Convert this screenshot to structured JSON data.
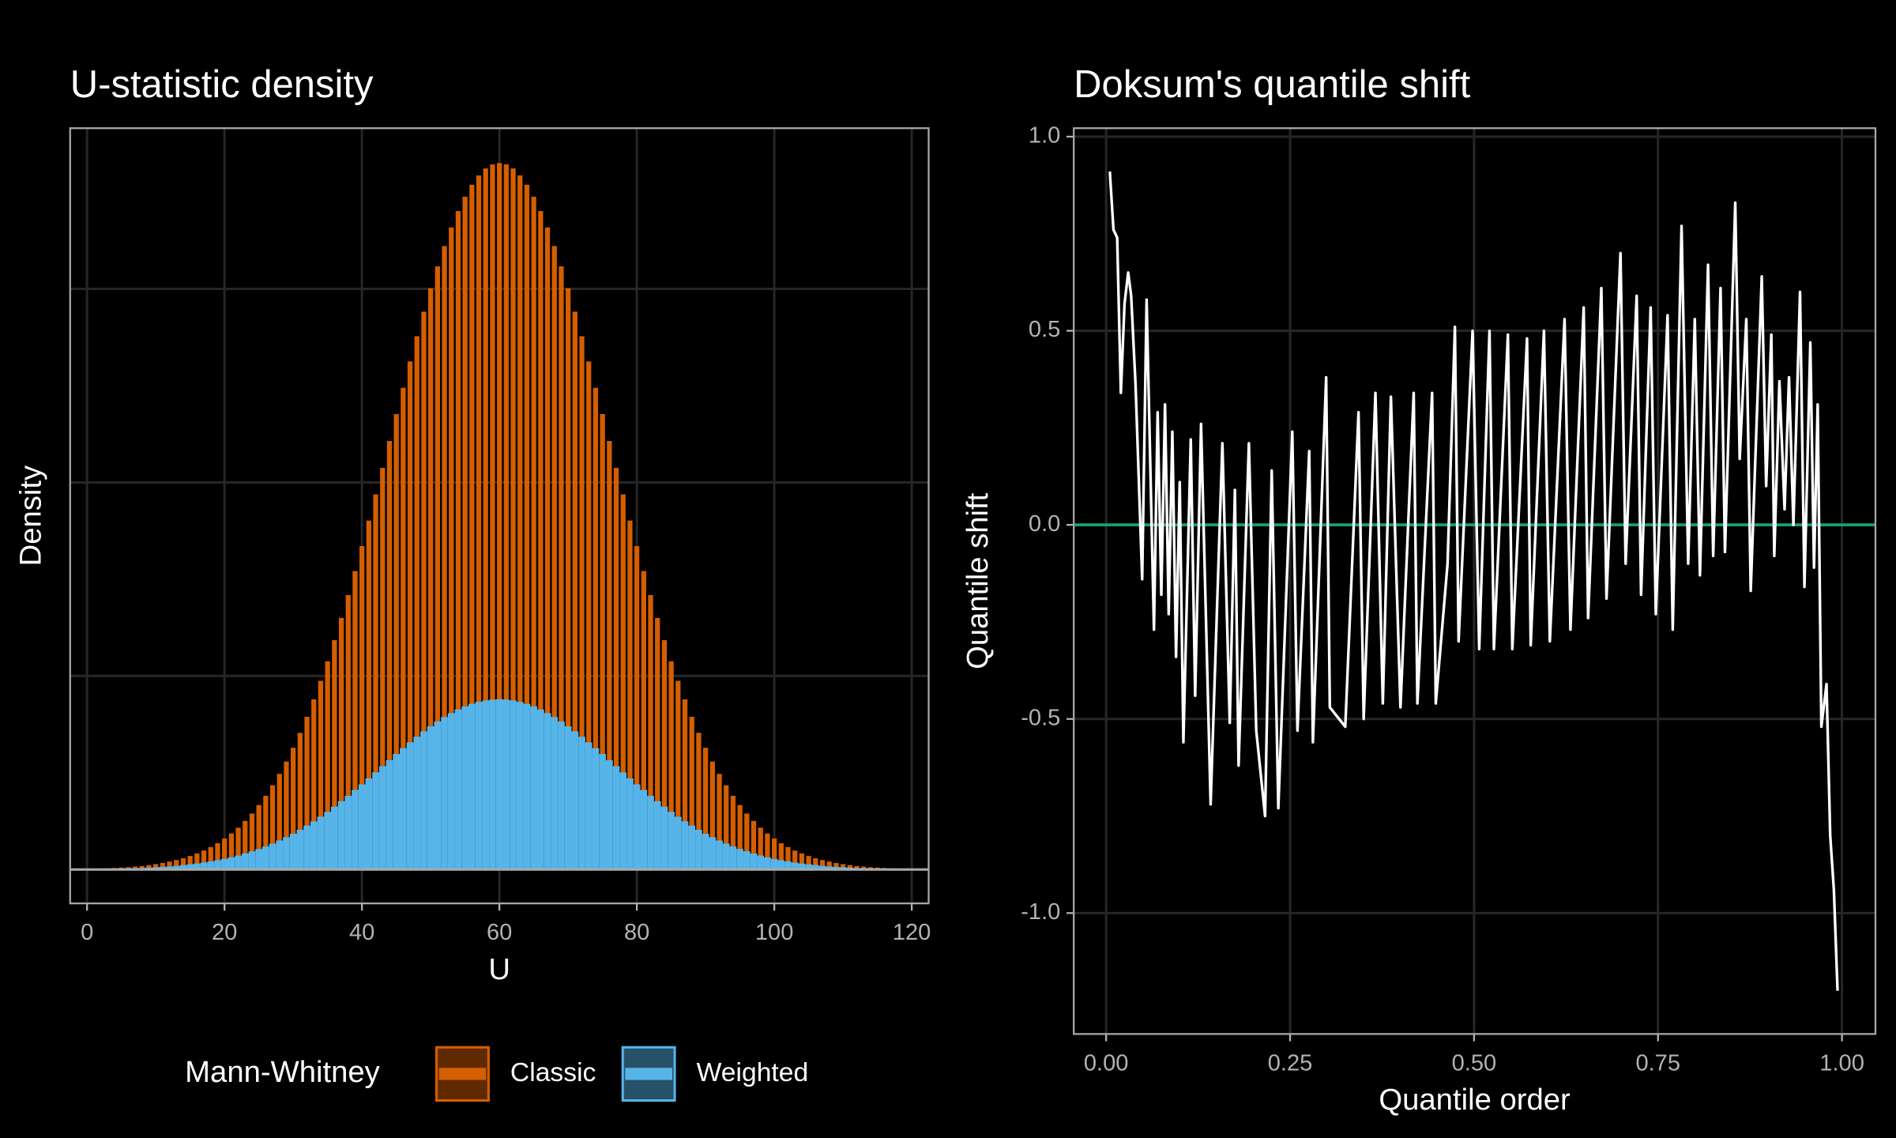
{
  "chart_data": [
    {
      "type": "bar",
      "title": "U-statistic density",
      "x_label": "U",
      "y_label": "Density",
      "legend_title": "Mann-Whitney",
      "legend_position": "bottom",
      "xlim": [
        -2.46,
        122.46
      ],
      "xticks": [
        0,
        20,
        40,
        60,
        80,
        100,
        120
      ],
      "ylim": [
        -0.00175,
        0.0383
      ],
      "yticks": [
        0,
        0.01,
        0.02,
        0.03
      ],
      "grid": true,
      "x": [
        0,
        1,
        2,
        3,
        4,
        5,
        6,
        7,
        8,
        9,
        10,
        11,
        12,
        13,
        14,
        15,
        16,
        17,
        18,
        19,
        20,
        21,
        22,
        23,
        24,
        25,
        26,
        27,
        28,
        29,
        30,
        31,
        32,
        33,
        34,
        35,
        36,
        37,
        38,
        39,
        40,
        41,
        42,
        43,
        44,
        45,
        46,
        47,
        48,
        49,
        50,
        51,
        52,
        53,
        54,
        55,
        56,
        57,
        58,
        59,
        60,
        61,
        62,
        63,
        64,
        65,
        66,
        67,
        68,
        69,
        70,
        71,
        72,
        73,
        74,
        75,
        76,
        77,
        78,
        79,
        80,
        81,
        82,
        83,
        84,
        85,
        86,
        87,
        88,
        89,
        90,
        91,
        92,
        93,
        94,
        95,
        96,
        97,
        98,
        99,
        100,
        101,
        102,
        103,
        104,
        105,
        106,
        107,
        108,
        109,
        110,
        111,
        112,
        113,
        114,
        115,
        116,
        117,
        118,
        119,
        120
      ],
      "series": [
        {
          "name": "Classic",
          "color": "#D55E00",
          "values": [
            3e-05,
            4e-05,
            5e-05,
            6e-05,
            8e-05,
            0.0001,
            0.00012,
            0.00015,
            0.00018,
            0.00023,
            0.00028,
            0.00034,
            0.00041,
            0.00049,
            0.00058,
            0.0007,
            0.00083,
            0.00098,
            0.00116,
            0.00136,
            0.0016,
            0.00186,
            0.00216,
            0.00251,
            0.00289,
            0.00333,
            0.00381,
            0.00435,
            0.00494,
            0.00558,
            0.00629,
            0.00706,
            0.00789,
            0.00879,
            0.00975,
            0.01076,
            0.01185,
            0.013,
            0.01418,
            0.01542,
            0.01671,
            0.01803,
            0.01938,
            0.02075,
            0.02214,
            0.02353,
            0.02489,
            0.02625,
            0.02755,
            0.02882,
            0.03003,
            0.03116,
            0.03221,
            0.03317,
            0.03402,
            0.03476,
            0.03538,
            0.03586,
            0.03622,
            0.03643,
            0.0365,
            0.03643,
            0.03622,
            0.03586,
            0.03538,
            0.03476,
            0.03402,
            0.03317,
            0.03221,
            0.03116,
            0.03003,
            0.02882,
            0.02755,
            0.02625,
            0.02489,
            0.02353,
            0.02214,
            0.02075,
            0.01938,
            0.01803,
            0.01671,
            0.01542,
            0.01418,
            0.013,
            0.01185,
            0.01076,
            0.00975,
            0.00879,
            0.00789,
            0.00706,
            0.00629,
            0.00558,
            0.00494,
            0.00435,
            0.00381,
            0.00333,
            0.00289,
            0.00251,
            0.00216,
            0.00186,
            0.0016,
            0.00136,
            0.00116,
            0.00098,
            0.00083,
            0.0007,
            0.00058,
            0.00049,
            0.00041,
            0.00034,
            0.00028,
            0.00023,
            0.00018,
            0.00015,
            0.00012,
            0.0001,
            8e-05,
            6e-05,
            5e-05,
            4e-05,
            3e-05
          ]
        },
        {
          "name": "Weighted",
          "color": "#56B4E9",
          "values": [
            2e-05,
            2e-05,
            3e-05,
            3e-05,
            4e-05,
            5e-05,
            6e-05,
            7e-05,
            8e-05,
            0.0001,
            0.00012,
            0.00014,
            0.00016,
            0.00019,
            0.00023,
            0.00027,
            0.00031,
            0.00036,
            0.00042,
            0.00048,
            0.00055,
            0.00063,
            0.00072,
            0.00083,
            0.00094,
            0.00106,
            0.00119,
            0.00134,
            0.0015,
            0.00167,
            0.00185,
            0.00205,
            0.00227,
            0.00249,
            0.00273,
            0.00298,
            0.00325,
            0.00353,
            0.00381,
            0.00411,
            0.0044,
            0.00471,
            0.00502,
            0.00534,
            0.00565,
            0.00597,
            0.00627,
            0.00657,
            0.00686,
            0.00714,
            0.0074,
            0.00765,
            0.00788,
            0.00808,
            0.00827,
            0.00843,
            0.00856,
            0.00866,
            0.00874,
            0.00878,
            0.0088,
            0.00878,
            0.00874,
            0.00866,
            0.00856,
            0.00843,
            0.00827,
            0.00808,
            0.00788,
            0.00765,
            0.0074,
            0.00714,
            0.00686,
            0.00657,
            0.00627,
            0.00597,
            0.00565,
            0.00534,
            0.00502,
            0.00471,
            0.0044,
            0.00411,
            0.00381,
            0.00353,
            0.00325,
            0.00298,
            0.00273,
            0.00249,
            0.00227,
            0.00205,
            0.00185,
            0.00167,
            0.0015,
            0.00134,
            0.00119,
            0.00106,
            0.00094,
            0.00083,
            0.00072,
            0.00063,
            0.00055,
            0.00048,
            0.00042,
            0.00036,
            0.00031,
            0.00027,
            0.00023,
            0.00019,
            0.00016,
            0.00014,
            0.00012,
            0.0001,
            8e-05,
            7e-05,
            6e-05,
            5e-05,
            4e-05,
            3e-05,
            3e-05,
            2e-05,
            2e-05
          ]
        }
      ]
    },
    {
      "type": "line",
      "title": "Doksum's quantile shift",
      "x_label": "Quantile order",
      "y_label": "Quantile shift",
      "xlim": [
        -0.044,
        1.0455
      ],
      "xticks": [
        {
          "value": 0,
          "label": "0.00"
        },
        {
          "value": 0.25,
          "label": "0.25"
        },
        {
          "value": 0.5,
          "label": "0.50"
        },
        {
          "value": 0.75,
          "label": "0.75"
        },
        {
          "value": 1,
          "label": "1.00"
        }
      ],
      "ylim": [
        -1.3115,
        1.0218
      ],
      "yticks": [
        {
          "value": -1,
          "label": "-1.0"
        },
        {
          "value": -0.5,
          "label": "-0.5"
        },
        {
          "value": 0,
          "label": "0.0"
        },
        {
          "value": 0.5,
          "label": "0.5"
        },
        {
          "value": 1,
          "label": "1.0"
        }
      ],
      "grid": true,
      "color": "#ffffff",
      "hline": 0,
      "hline_color": "#1b9e77",
      "x": [
        0.005,
        0.01,
        0.015,
        0.02,
        0.025,
        0.03,
        0.034,
        0.04,
        0.049,
        0.055,
        0.065,
        0.07,
        0.075,
        0.08,
        0.085,
        0.09,
        0.095,
        0.1,
        0.105,
        0.115,
        0.121,
        0.129,
        0.142,
        0.158,
        0.168,
        0.175,
        0.18,
        0.194,
        0.204,
        0.216,
        0.225,
        0.234,
        0.253,
        0.26,
        0.276,
        0.281,
        0.299,
        0.304,
        0.325,
        0.343,
        0.35,
        0.366,
        0.376,
        0.387,
        0.4,
        0.418,
        0.423,
        0.443,
        0.448,
        0.464,
        0.474,
        0.479,
        0.498,
        0.507,
        0.521,
        0.527,
        0.546,
        0.552,
        0.572,
        0.577,
        0.595,
        0.603,
        0.623,
        0.631,
        0.649,
        0.655,
        0.673,
        0.68,
        0.699,
        0.706,
        0.721,
        0.727,
        0.74,
        0.747,
        0.763,
        0.77,
        0.782,
        0.791,
        0.8,
        0.807,
        0.818,
        0.825,
        0.835,
        0.841,
        0.855,
        0.861,
        0.87,
        0.876,
        0.891,
        0.897,
        0.904,
        0.908,
        0.915,
        0.922,
        0.928,
        0.934,
        0.943,
        0.949,
        0.957,
        0.962,
        0.967,
        0.972,
        0.979,
        0.984,
        0.989,
        0.994
      ],
      "values": [
        0.91,
        0.76,
        0.74,
        0.34,
        0.57,
        0.65,
        0.59,
        0.36,
        -0.14,
        0.58,
        -0.27,
        0.29,
        -0.18,
        0.31,
        -0.23,
        0.24,
        -0.34,
        0.11,
        -0.56,
        0.22,
        -0.44,
        0.26,
        -0.72,
        0.21,
        -0.51,
        0.09,
        -0.62,
        0.21,
        -0.53,
        -0.75,
        0.14,
        -0.73,
        0.24,
        -0.53,
        0.19,
        -0.56,
        0.38,
        -0.47,
        -0.52,
        0.29,
        -0.5,
        0.34,
        -0.46,
        0.33,
        -0.47,
        0.34,
        -0.46,
        0.34,
        -0.46,
        -0.1,
        0.51,
        -0.3,
        0.5,
        -0.32,
        0.5,
        -0.32,
        0.49,
        -0.32,
        0.48,
        -0.31,
        0.5,
        -0.3,
        0.53,
        -0.27,
        0.56,
        -0.24,
        0.61,
        -0.19,
        0.7,
        -0.1,
        0.59,
        -0.18,
        0.56,
        -0.23,
        0.54,
        -0.27,
        0.77,
        -0.1,
        0.53,
        -0.13,
        0.67,
        -0.08,
        0.61,
        -0.07,
        0.83,
        0.17,
        0.53,
        -0.17,
        0.64,
        0.1,
        0.49,
        -0.08,
        0.37,
        0.04,
        0.38,
        0,
        0.6,
        -0.16,
        0.47,
        -0.11,
        0.31,
        -0.52,
        -0.41,
        -0.8,
        -0.94,
        -1.2
      ]
    }
  ]
}
